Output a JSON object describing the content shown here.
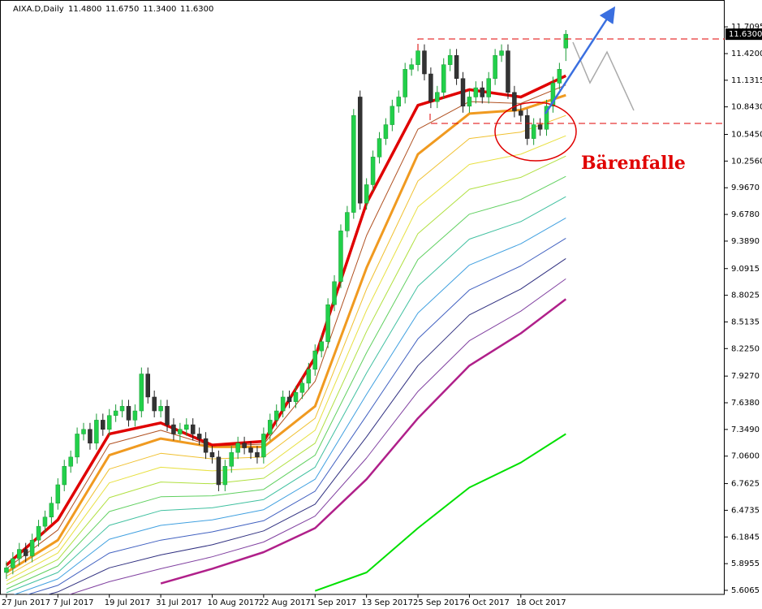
{
  "chart_data": {
    "type": "candlestick",
    "title": "AIXA.D,Daily",
    "header_values": [
      "11.4800",
      "11.6750",
      "11.3400",
      "11.6300"
    ],
    "annotation": "Bärenfalle",
    "xlim": [
      -1,
      111.7
    ],
    "ylim": [
      5.5625,
      11.983
    ],
    "yticks": [
      11.7095,
      {
        "value": 11.42,
        "label": "11.4200"
      },
      11.1315,
      {
        "value": 10.843,
        "label": "10.8430"
      },
      {
        "value": 10.545,
        "label": "10.5450"
      },
      {
        "value": 10.256,
        "label": "10.2560"
      },
      {
        "value": 9.967,
        "label": "9.9670"
      },
      {
        "value": 9.678,
        "label": "9.6780"
      },
      {
        "value": 9.389,
        "label": "9.3890"
      },
      9.0915,
      8.8025,
      8.5135,
      {
        "value": 8.225,
        "label": "8.2250"
      },
      {
        "value": 7.927,
        "label": "7.9270"
      },
      {
        "value": 7.638,
        "label": "7.6380"
      },
      {
        "value": 7.349,
        "label": "7.3490"
      },
      {
        "value": 7.06,
        "label": "7.0600"
      },
      6.7625,
      6.4735,
      6.1845,
      5.8955,
      5.6065
    ],
    "xticks": [
      {
        "value": 0,
        "label": "27 Jun 2017"
      },
      {
        "value": 8,
        "label": "7 Jul 2017"
      },
      {
        "value": 16,
        "label": "19 Jul 2017"
      },
      {
        "value": 24,
        "label": "31 Jul 2017"
      },
      {
        "value": 32,
        "label": "10 Aug 2017"
      },
      {
        "value": 40,
        "label": "22 Aug 2017"
      },
      {
        "value": 48,
        "label": "1 Sep 2017"
      },
      {
        "value": 56,
        "label": "13 Sep 2017"
      },
      {
        "value": 64,
        "label": "25 Sep 2017"
      },
      {
        "value": 72,
        "label": "6 Oct 2017"
      },
      {
        "value": 80,
        "label": "18 Oct 2017"
      }
    ],
    "price_label": {
      "value": 11.63,
      "label": "11.6300"
    },
    "grid": false,
    "up_color": "#22d04a",
    "down_color": "#333333",
    "ohlc": [
      [
        5.8,
        5.92,
        5.73,
        5.85
      ],
      [
        5.85,
        6.02,
        5.78,
        5.95
      ],
      [
        5.95,
        6.12,
        5.88,
        6.05
      ],
      [
        6.05,
        6.12,
        5.91,
        5.98
      ],
      [
        5.98,
        6.22,
        5.91,
        6.15
      ],
      [
        6.15,
        6.37,
        6.08,
        6.3
      ],
      [
        6.3,
        6.47,
        6.23,
        6.4
      ],
      [
        6.4,
        6.62,
        6.33,
        6.55
      ],
      [
        6.55,
        6.82,
        6.48,
        6.75
      ],
      [
        6.75,
        7.02,
        6.68,
        6.95
      ],
      [
        6.95,
        7.12,
        6.88,
        7.05
      ],
      [
        7.05,
        7.37,
        6.98,
        7.3
      ],
      [
        7.3,
        7.42,
        7.23,
        7.35
      ],
      [
        7.35,
        7.42,
        7.13,
        7.2
      ],
      [
        7.2,
        7.52,
        7.13,
        7.45
      ],
      [
        7.45,
        7.52,
        7.28,
        7.35
      ],
      [
        7.35,
        7.57,
        7.28,
        7.5
      ],
      [
        7.5,
        7.62,
        7.43,
        7.55
      ],
      [
        7.55,
        7.67,
        7.48,
        7.6
      ],
      [
        7.6,
        7.67,
        7.38,
        7.45
      ],
      [
        7.45,
        7.62,
        7.38,
        7.55
      ],
      [
        7.55,
        8.02,
        7.48,
        7.95
      ],
      [
        7.95,
        8.02,
        7.63,
        7.7
      ],
      [
        7.7,
        7.77,
        7.48,
        7.55
      ],
      [
        7.55,
        7.67,
        7.48,
        7.6
      ],
      [
        7.6,
        7.67,
        7.33,
        7.4
      ],
      [
        7.4,
        7.47,
        7.23,
        7.3
      ],
      [
        7.3,
        7.42,
        7.23,
        7.35
      ],
      [
        7.35,
        7.47,
        7.28,
        7.4
      ],
      [
        7.4,
        7.47,
        7.23,
        7.3
      ],
      [
        7.3,
        7.37,
        7.18,
        7.25
      ],
      [
        7.25,
        7.32,
        7.03,
        7.1
      ],
      [
        7.1,
        7.17,
        6.98,
        7.05
      ],
      [
        7.05,
        7.12,
        6.68,
        6.75
      ],
      [
        6.75,
        7.02,
        6.68,
        6.95
      ],
      [
        6.95,
        7.17,
        6.88,
        7.1
      ],
      [
        7.1,
        7.27,
        7.03,
        7.2
      ],
      [
        7.2,
        7.27,
        7.08,
        7.15
      ],
      [
        7.15,
        7.22,
        7.03,
        7.1
      ],
      [
        7.1,
        7.17,
        6.98,
        7.05
      ],
      [
        7.05,
        7.37,
        6.98,
        7.3
      ],
      [
        7.3,
        7.52,
        7.23,
        7.45
      ],
      [
        7.45,
        7.62,
        7.38,
        7.55
      ],
      [
        7.55,
        7.77,
        7.48,
        7.7
      ],
      [
        7.7,
        7.77,
        7.58,
        7.65
      ],
      [
        7.65,
        7.82,
        7.58,
        7.75
      ],
      [
        7.75,
        7.92,
        7.68,
        7.85
      ],
      [
        7.85,
        8.07,
        7.78,
        8.0
      ],
      [
        8.0,
        8.27,
        7.93,
        8.2
      ],
      [
        8.2,
        8.37,
        8.13,
        8.3
      ],
      [
        8.3,
        8.77,
        8.23,
        8.7
      ],
      [
        8.7,
        9.02,
        8.63,
        8.95
      ],
      [
        8.95,
        9.57,
        8.88,
        9.5
      ],
      [
        9.5,
        9.77,
        9.43,
        9.7
      ],
      [
        9.7,
        10.82,
        9.63,
        10.75
      ],
      [
        10.95,
        11.02,
        9.73,
        9.8
      ],
      [
        9.8,
        10.07,
        9.73,
        10.0
      ],
      [
        10.0,
        10.37,
        9.93,
        10.3
      ],
      [
        10.3,
        10.57,
        10.23,
        10.5
      ],
      [
        10.5,
        10.72,
        10.43,
        10.65
      ],
      [
        10.65,
        10.92,
        10.58,
        10.85
      ],
      [
        10.85,
        11.02,
        10.78,
        10.95
      ],
      [
        10.95,
        11.32,
        10.88,
        11.25
      ],
      [
        11.25,
        11.37,
        11.18,
        11.3
      ],
      [
        11.3,
        11.52,
        11.23,
        11.45
      ],
      [
        11.45,
        11.52,
        11.13,
        11.2
      ],
      [
        11.2,
        11.27,
        10.83,
        10.9
      ],
      [
        10.9,
        11.07,
        10.83,
        11.0
      ],
      [
        11.0,
        11.37,
        10.93,
        11.3
      ],
      [
        11.3,
        11.47,
        11.23,
        11.4
      ],
      [
        11.4,
        11.47,
        11.08,
        11.15
      ],
      [
        11.15,
        11.22,
        10.78,
        10.85
      ],
      [
        10.85,
        11.02,
        10.78,
        10.95
      ],
      [
        10.95,
        11.12,
        10.88,
        11.05
      ],
      [
        11.05,
        11.12,
        10.88,
        10.95
      ],
      [
        10.95,
        11.22,
        10.88,
        11.15
      ],
      [
        11.15,
        11.47,
        11.08,
        11.4
      ],
      [
        11.4,
        11.52,
        11.33,
        11.45
      ],
      [
        11.45,
        11.52,
        10.93,
        11.0
      ],
      [
        11.0,
        11.07,
        10.73,
        10.8
      ],
      [
        10.8,
        10.87,
        10.68,
        10.75
      ],
      [
        10.75,
        10.82,
        10.43,
        10.5
      ],
      [
        10.5,
        10.72,
        10.43,
        10.65
      ],
      [
        10.65,
        10.72,
        10.53,
        10.6
      ],
      [
        10.6,
        10.92,
        10.53,
        10.85
      ],
      [
        10.85,
        11.17,
        10.78,
        11.1
      ],
      [
        11.1,
        11.32,
        11.03,
        11.25
      ],
      [
        11.48,
        11.675,
        11.34,
        11.63
      ]
    ],
    "line_x": [
      0,
      8,
      16,
      24,
      32,
      40,
      48,
      56,
      64,
      72,
      80,
      87
    ],
    "series": [
      {
        "color": "#00e000",
        "width": 2,
        "values": [
          null,
          null,
          null,
          null,
          null,
          null,
          5.6,
          5.8,
          6.28,
          6.72,
          6.99,
          7.3
        ]
      },
      {
        "color": "#b0208a",
        "width": 2.5,
        "values": [
          null,
          null,
          null,
          5.68,
          5.84,
          6.02,
          6.28,
          6.81,
          7.47,
          8.04,
          8.39,
          8.76
        ]
      },
      {
        "color": "#8040a0",
        "width": 1,
        "values": [
          5.4,
          5.52,
          5.7,
          5.84,
          5.97,
          6.13,
          6.41,
          7.04,
          7.76,
          8.31,
          8.63,
          8.98
        ]
      },
      {
        "color": "#303080",
        "width": 1,
        "values": [
          5.44,
          5.59,
          5.85,
          5.99,
          6.1,
          6.25,
          6.54,
          7.27,
          8.04,
          8.59,
          8.87,
          9.2
        ]
      },
      {
        "color": "#4060c0",
        "width": 1,
        "values": [
          5.49,
          5.66,
          6.01,
          6.15,
          6.24,
          6.36,
          6.68,
          7.5,
          8.33,
          8.86,
          9.12,
          9.42
        ]
      },
      {
        "color": "#40a0e0",
        "width": 1,
        "values": [
          5.53,
          5.73,
          6.16,
          6.31,
          6.37,
          6.48,
          6.81,
          7.73,
          8.61,
          9.13,
          9.36,
          9.64
        ]
      },
      {
        "color": "#40c0a0",
        "width": 1,
        "values": [
          5.58,
          5.8,
          6.31,
          6.47,
          6.5,
          6.59,
          6.94,
          7.96,
          8.9,
          9.41,
          9.6,
          9.87
        ]
      },
      {
        "color": "#60d060",
        "width": 1,
        "values": [
          5.62,
          5.87,
          6.46,
          6.62,
          6.63,
          6.7,
          7.07,
          8.18,
          9.19,
          9.68,
          9.84,
          10.09
        ]
      },
      {
        "color": "#b0e040",
        "width": 1,
        "values": [
          5.67,
          5.94,
          6.61,
          6.78,
          6.76,
          6.82,
          7.2,
          8.41,
          9.47,
          9.95,
          10.08,
          10.31
        ]
      },
      {
        "color": "#e8e040",
        "width": 1,
        "values": [
          5.71,
          6.01,
          6.77,
          6.94,
          6.9,
          6.93,
          7.34,
          8.64,
          9.76,
          10.22,
          10.33,
          10.53
        ]
      },
      {
        "color": "#f0c030",
        "width": 1,
        "values": [
          5.76,
          6.08,
          6.92,
          7.09,
          7.03,
          7.05,
          7.47,
          8.87,
          10.04,
          10.5,
          10.57,
          10.75
        ]
      },
      {
        "color": "#f09a20",
        "width": 3,
        "values": [
          5.8,
          6.15,
          7.07,
          7.25,
          7.16,
          7.16,
          7.6,
          9.1,
          10.33,
          10.77,
          10.81,
          10.97
        ]
      },
      {
        "color": "#b05020",
        "width": 1,
        "values": [
          5.84,
          6.26,
          7.19,
          7.34,
          7.17,
          7.19,
          7.87,
          9.45,
          10.6,
          10.9,
          10.88,
          11.08
        ]
      },
      {
        "color": "#e00000",
        "width": 3.5,
        "values": [
          5.88,
          6.37,
          7.3,
          7.42,
          7.18,
          7.22,
          8.13,
          9.8,
          10.86,
          11.03,
          10.95,
          11.18
        ]
      }
    ]
  }
}
